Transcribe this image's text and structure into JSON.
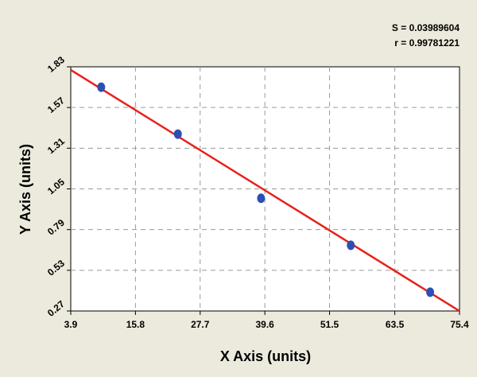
{
  "chart_data": {
    "type": "scatter",
    "stats": {
      "s": "S = 0.03989604",
      "r": "r = 0.99781221"
    },
    "xlabel": "X Axis (units)",
    "ylabel": "Y Axis (units)",
    "xlim": [
      3.9,
      75.4
    ],
    "ylim": [
      0.27,
      1.83
    ],
    "x_ticks": [
      "3.9",
      "15.8",
      "27.7",
      "39.6",
      "51.5",
      "63.5",
      "75.4"
    ],
    "y_ticks": [
      "0.27",
      "0.53",
      "0.79",
      "1.05",
      "1.31",
      "1.57",
      "1.83"
    ],
    "grid": true,
    "series": [
      {
        "kind": "points",
        "color": "#2b4fb5",
        "points": [
          {
            "x": 9.5,
            "y": 1.7
          },
          {
            "x": 23.6,
            "y": 1.4
          },
          {
            "x": 38.9,
            "y": 0.99
          },
          {
            "x": 55.4,
            "y": 0.69
          },
          {
            "x": 70.0,
            "y": 0.39
          }
        ]
      },
      {
        "kind": "fit-line",
        "color": "#e8221c",
        "x": [
          3.9,
          75.4
        ],
        "y": [
          1.81,
          0.27
        ]
      }
    ]
  }
}
